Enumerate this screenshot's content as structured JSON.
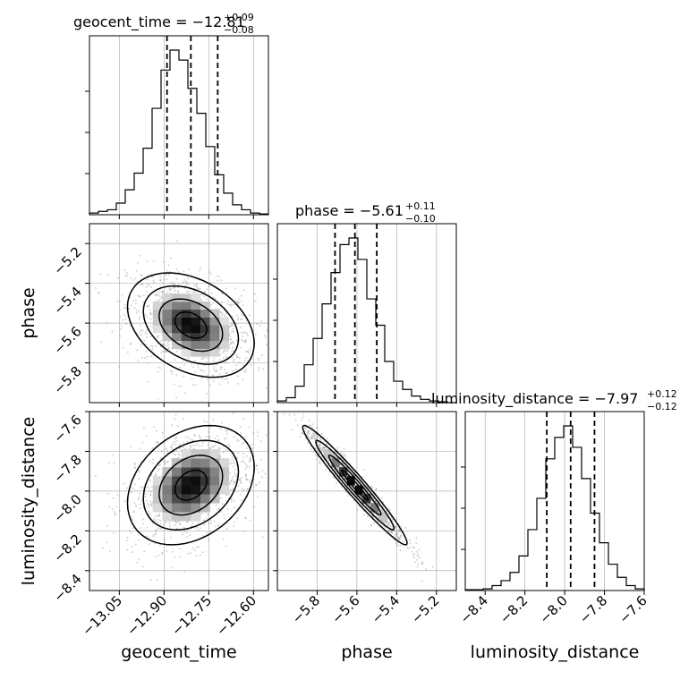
{
  "chart_data": {
    "type": "corner",
    "parameters": [
      {
        "name": "geocent_time",
        "range": [
          -13.15,
          -12.55
        ],
        "ticks": [
          -13.05,
          -12.9,
          -12.75,
          -12.6
        ],
        "median": -12.81,
        "lower": -12.89,
        "upper": -12.72
      },
      {
        "name": "phase",
        "range": [
          -6.0,
          -5.1
        ],
        "ticks": [
          -5.8,
          -5.6,
          -5.4,
          -5.2
        ],
        "median": -5.61,
        "lower": -5.71,
        "upper": -5.5
      },
      {
        "name": "luminosity_distance",
        "range": [
          -8.5,
          -7.6
        ],
        "ticks": [
          -8.4,
          -8.2,
          -8.0,
          -7.8,
          -7.6
        ],
        "median": -7.97,
        "lower": -8.09,
        "upper": -7.85
      }
    ],
    "tick_labels": {
      "geocent_time": [
        "−13.05",
        "−12.90",
        "−12.75",
        "−12.60"
      ],
      "phase": [
        "−5.8",
        "−5.6",
        "−5.4",
        "−5.2"
      ],
      "luminosity_distance": [
        "−8.4",
        "−8.2",
        "−8.0",
        "−7.8",
        "−7.6"
      ]
    },
    "titles": [
      {
        "main": "geocent_time = −12.81",
        "sup": "+0.09",
        "sub": "−0.08"
      },
      {
        "main": "phase = −5.61",
        "sup": "+0.11",
        "sub": "−0.10"
      },
      {
        "main": "luminosity_distance = −7.97",
        "sup": "+0.12",
        "sub": "−0.12"
      }
    ],
    "histograms": {
      "geocent_time": [
        1,
        2,
        3,
        7,
        15,
        25,
        40,
        64,
        87,
        99,
        93,
        76,
        61,
        41,
        24,
        13,
        6,
        3,
        1,
        0.5
      ],
      "phase": [
        1,
        3,
        10,
        23,
        39,
        60,
        79,
        96,
        100,
        87,
        63,
        47,
        25,
        13,
        8,
        4,
        2,
        1,
        0.5,
        0
      ],
      "luminosity_distance": [
        0.5,
        0.5,
        1,
        3,
        6,
        11,
        21,
        37,
        56,
        80,
        93,
        100,
        87,
        68,
        47,
        29,
        16,
        8,
        3,
        1
      ]
    },
    "correlations": {
      "phase_vs_geocent_time": -0.35,
      "luminosity_distance_vs_geocent_time": 0.3,
      "luminosity_distance_vs_phase": -0.97
    },
    "grid": true
  },
  "colors": {
    "line": "#000000",
    "grid": "#b0b0b0",
    "scatter": "#808080"
  }
}
